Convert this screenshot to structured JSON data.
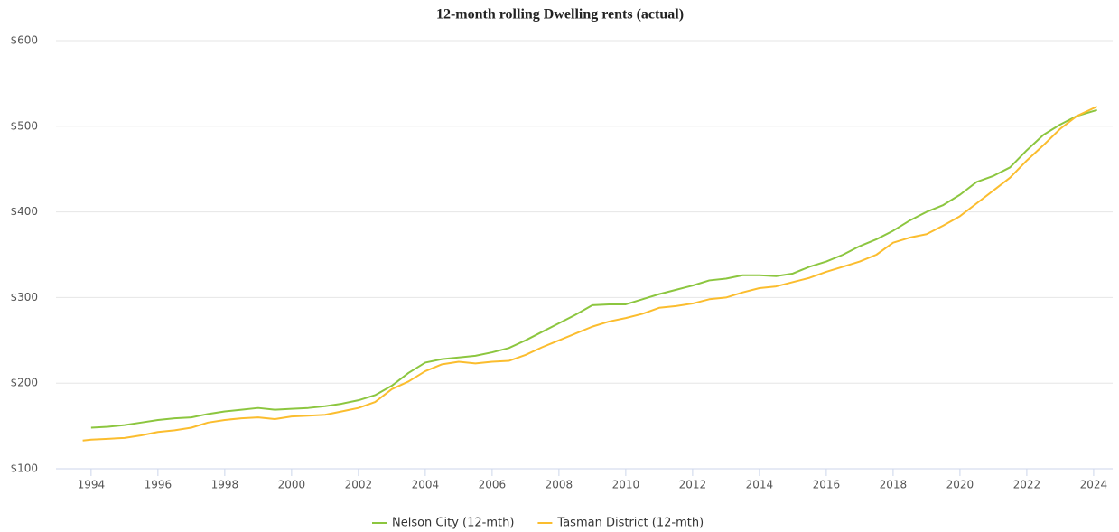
{
  "chart_data": {
    "type": "line",
    "title": "12-month rolling Dwelling rents (actual)",
    "x": [
      1993.75,
      1994,
      1994.5,
      1995,
      1995.5,
      1996,
      1996.5,
      1997,
      1997.5,
      1998,
      1998.5,
      1999,
      1999.5,
      2000,
      2000.5,
      2001,
      2001.5,
      2002,
      2002.5,
      2003,
      2003.5,
      2004,
      2004.5,
      2005,
      2005.5,
      2006,
      2006.5,
      2007,
      2007.5,
      2008,
      2008.5,
      2009,
      2009.5,
      2010,
      2010.5,
      2011,
      2011.5,
      2012,
      2012.5,
      2013,
      2013.5,
      2014,
      2014.5,
      2015,
      2015.5,
      2016,
      2016.5,
      2017,
      2017.5,
      2018,
      2018.5,
      2019,
      2019.5,
      2020,
      2020.5,
      2021,
      2021.5,
      2022,
      2022.5,
      2023,
      2023.5,
      2024.1
    ],
    "series": [
      {
        "name": "Nelson City (12-mth)",
        "color": "#8cc63f",
        "values": [
          null,
          148,
          149,
          151,
          154,
          157,
          159,
          160,
          164,
          167,
          169,
          171,
          169,
          170,
          171,
          173,
          176,
          180,
          186,
          197,
          212,
          224,
          228,
          230,
          232,
          236,
          241,
          250,
          260,
          270,
          280,
          291,
          292,
          292,
          298,
          304,
          309,
          314,
          320,
          322,
          326,
          326,
          325,
          328,
          336,
          342,
          350,
          360,
          368,
          378,
          390,
          400,
          408,
          420,
          435,
          442,
          452,
          472,
          490,
          502,
          512,
          519
        ]
      },
      {
        "name": "Tasman District (12-mth)",
        "color": "#fbbd2e",
        "values": [
          133,
          134,
          135,
          136,
          139,
          143,
          145,
          148,
          154,
          157,
          159,
          160,
          158,
          161,
          162,
          163,
          167,
          171,
          178,
          193,
          202,
          214,
          222,
          225,
          223,
          225,
          226,
          233,
          242,
          250,
          258,
          266,
          272,
          276,
          281,
          288,
          290,
          293,
          298,
          300,
          306,
          311,
          313,
          318,
          323,
          330,
          336,
          342,
          350,
          364,
          370,
          374,
          384,
          395,
          410,
          425,
          440,
          460,
          478,
          497,
          512,
          523
        ]
      }
    ],
    "xlim": [
      1992.95,
      2024.57
    ],
    "xticks": [
      1994,
      1996,
      1998,
      2000,
      2002,
      2004,
      2006,
      2008,
      2010,
      2012,
      2014,
      2016,
      2018,
      2020,
      2022,
      2024
    ],
    "ylim": [
      100,
      600
    ],
    "yticks": [
      {
        "value": 100,
        "label": "$100"
      },
      {
        "value": 200,
        "label": "$200"
      },
      {
        "value": 300,
        "label": "$300"
      },
      {
        "value": 400,
        "label": "$400"
      },
      {
        "value": 500,
        "label": "$500"
      },
      {
        "value": 600,
        "label": "$600"
      }
    ],
    "grid": true,
    "legend": "bottom"
  }
}
